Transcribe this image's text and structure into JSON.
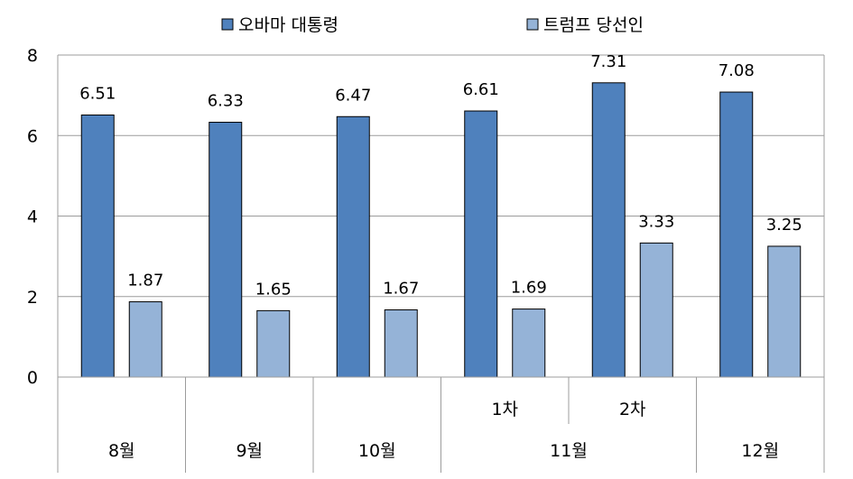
{
  "chart_data": {
    "type": "bar",
    "categories": [
      "8월",
      "9월",
      "10월",
      "11월 1차",
      "11월 2차",
      "12월"
    ],
    "category_groups": [
      {
        "label": "8월",
        "subs": [
          ""
        ]
      },
      {
        "label": "9월",
        "subs": [
          ""
        ]
      },
      {
        "label": "10월",
        "subs": [
          ""
        ]
      },
      {
        "label": "11월",
        "subs": [
          "1차",
          "2차"
        ]
      },
      {
        "label": "12월",
        "subs": [
          ""
        ]
      }
    ],
    "series": [
      {
        "name": "오바마 대통령",
        "color": "#4f81bd",
        "values": [
          6.51,
          6.33,
          6.47,
          6.61,
          7.31,
          7.08
        ]
      },
      {
        "name": "트럼프 당선인",
        "color": "#95b3d7",
        "values": [
          1.87,
          1.65,
          1.67,
          1.69,
          3.33,
          3.25
        ]
      }
    ],
    "ylim": [
      0,
      8
    ],
    "yticks": [
      "0",
      "2",
      "4",
      "6",
      "8"
    ],
    "grid": true,
    "legend": "top"
  }
}
